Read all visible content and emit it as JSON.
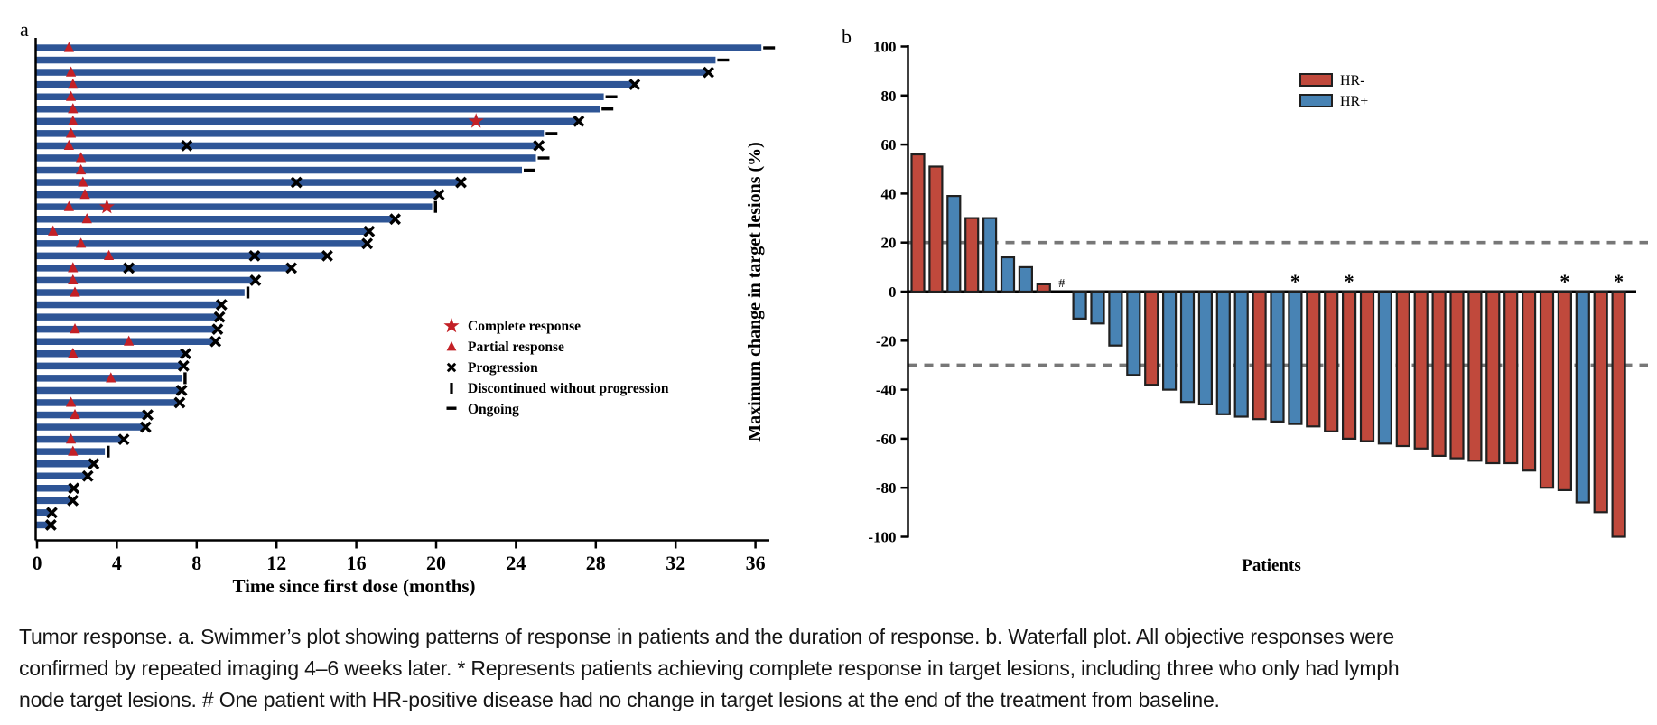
{
  "figure": {
    "panel_a_label": "a",
    "panel_b_label": "b"
  },
  "caption": {
    "lines": [
      "Tumor response. a. Swimmer’s plot showing patterns of response in patients and the duration of response. b. Waterfall plot. All objective responses were",
      "confirmed by repeated imaging 4–6 weeks later. * Represents patients achieving complete response in target lesions, including three who only had lymph",
      "node target lesions. # One patient with HR-positive disease had no change in target lesions at the end of the treatment from baseline."
    ]
  },
  "colors": {
    "swimmer_bar": "#2e5596",
    "response_red": "#c32026",
    "black": "#000000",
    "hr_negative": "#c0493c",
    "hr_positive": "#4883b4",
    "bar_outline": "#202020",
    "dashed_reference": "#777777"
  },
  "chart_data": [
    {
      "type": "bar",
      "subtype": "swimmer",
      "panel": "a",
      "xlabel": "Time since first dose (months)",
      "xlim": [
        0,
        38
      ],
      "xticks": [
        0,
        4,
        8,
        12,
        16,
        20,
        24,
        28,
        32,
        36
      ],
      "legend": [
        {
          "symbol": "star",
          "label": "Complete response"
        },
        {
          "symbol": "triangle",
          "label": "Partial response"
        },
        {
          "symbol": "x",
          "label": "Progression"
        },
        {
          "symbol": "vbar",
          "label": "Discontinued without progression"
        },
        {
          "symbol": "dash",
          "label": "Ongoing"
        }
      ],
      "patients": [
        {
          "length": 36.3,
          "pr": 1.6,
          "cr": null,
          "mid_x": [],
          "end": "ongoing"
        },
        {
          "length": 34.0,
          "pr": null,
          "cr": null,
          "mid_x": [],
          "end": "ongoing"
        },
        {
          "length": 33.6,
          "pr": 1.7,
          "cr": null,
          "mid_x": [],
          "end": "progression"
        },
        {
          "length": 29.9,
          "pr": 1.8,
          "cr": null,
          "mid_x": [],
          "end": "progression"
        },
        {
          "length": 28.4,
          "pr": 1.7,
          "cr": null,
          "mid_x": [],
          "end": "ongoing"
        },
        {
          "length": 28.2,
          "pr": 1.8,
          "cr": null,
          "mid_x": [],
          "end": "ongoing"
        },
        {
          "length": 27.1,
          "pr": 1.8,
          "cr": 22.0,
          "mid_x": [],
          "end": "progression"
        },
        {
          "length": 25.4,
          "pr": 1.7,
          "cr": null,
          "mid_x": [],
          "end": "ongoing"
        },
        {
          "length": 25.1,
          "pr": 1.6,
          "cr": null,
          "mid_x": [
            7.5
          ],
          "end": "progression"
        },
        {
          "length": 25.0,
          "pr": 2.2,
          "cr": null,
          "mid_x": [],
          "end": "ongoing"
        },
        {
          "length": 24.3,
          "pr": 2.2,
          "cr": null,
          "mid_x": [],
          "end": "ongoing"
        },
        {
          "length": 21.2,
          "pr": 2.3,
          "cr": null,
          "mid_x": [
            13.0
          ],
          "end": "progression"
        },
        {
          "length": 20.1,
          "pr": 2.4,
          "cr": null,
          "mid_x": [],
          "end": "progression"
        },
        {
          "length": 19.8,
          "pr": 1.6,
          "cr": 3.5,
          "mid_x": [],
          "end": "discontinued"
        },
        {
          "length": 17.9,
          "pr": 2.5,
          "cr": null,
          "mid_x": [],
          "end": "progression"
        },
        {
          "length": 16.6,
          "pr": 0.8,
          "cr": null,
          "mid_x": [],
          "end": "progression"
        },
        {
          "length": 16.5,
          "pr": 2.2,
          "cr": null,
          "mid_x": [],
          "end": "progression"
        },
        {
          "length": 14.5,
          "pr": 3.6,
          "cr": null,
          "mid_x": [
            10.9
          ],
          "end": "progression"
        },
        {
          "length": 12.7,
          "pr": 1.8,
          "cr": null,
          "mid_x": [
            4.6
          ],
          "end": "progression"
        },
        {
          "length": 10.9,
          "pr": 1.8,
          "cr": null,
          "mid_x": [],
          "end": "progression"
        },
        {
          "length": 10.4,
          "pr": 1.9,
          "cr": null,
          "mid_x": [],
          "end": "discontinued"
        },
        {
          "length": 9.2,
          "pr": null,
          "cr": null,
          "mid_x": [],
          "end": "progression"
        },
        {
          "length": 9.1,
          "pr": null,
          "cr": null,
          "mid_x": [],
          "end": "progression"
        },
        {
          "length": 9.0,
          "pr": 1.9,
          "cr": null,
          "mid_x": [],
          "end": "progression"
        },
        {
          "length": 8.9,
          "pr": 4.6,
          "cr": null,
          "mid_x": [],
          "end": "progression"
        },
        {
          "length": 7.4,
          "pr": 1.8,
          "cr": null,
          "mid_x": [],
          "end": "progression"
        },
        {
          "length": 7.3,
          "pr": null,
          "cr": null,
          "mid_x": [],
          "end": "progression"
        },
        {
          "length": 7.25,
          "pr": 3.7,
          "cr": null,
          "mid_x": [],
          "end": "discontinued"
        },
        {
          "length": 7.2,
          "pr": null,
          "cr": null,
          "mid_x": [],
          "end": "progression"
        },
        {
          "length": 7.1,
          "pr": 1.7,
          "cr": null,
          "mid_x": [],
          "end": "progression"
        },
        {
          "length": 5.5,
          "pr": 1.9,
          "cr": null,
          "mid_x": [],
          "end": "progression"
        },
        {
          "length": 5.4,
          "pr": null,
          "cr": null,
          "mid_x": [],
          "end": "progression"
        },
        {
          "length": 4.3,
          "pr": 1.7,
          "cr": null,
          "mid_x": [],
          "end": "progression"
        },
        {
          "length": 3.4,
          "pr": 1.8,
          "cr": null,
          "mid_x": [],
          "end": "discontinued"
        },
        {
          "length": 2.8,
          "pr": null,
          "cr": null,
          "mid_x": [],
          "end": "progression"
        },
        {
          "length": 2.5,
          "pr": null,
          "cr": null,
          "mid_x": [],
          "end": "progression"
        },
        {
          "length": 1.8,
          "pr": null,
          "cr": null,
          "mid_x": [],
          "end": "progression"
        },
        {
          "length": 1.75,
          "pr": null,
          "cr": null,
          "mid_x": [],
          "end": "progression"
        },
        {
          "length": 0.7,
          "pr": null,
          "cr": null,
          "mid_x": [],
          "end": "progression"
        },
        {
          "length": 0.65,
          "pr": null,
          "cr": null,
          "mid_x": [],
          "end": "progression"
        }
      ]
    },
    {
      "type": "bar",
      "subtype": "waterfall",
      "panel": "b",
      "ylabel": "Maximum change in target lesions (%)",
      "xlabel": "Patients",
      "ylim": [
        -100,
        100
      ],
      "yticks": [
        100,
        80,
        60,
        40,
        20,
        0,
        -20,
        -40,
        -60,
        -80,
        -100
      ],
      "reference_lines": [
        20,
        -30
      ],
      "legend": [
        {
          "label": "HR-",
          "color": "#c0493c"
        },
        {
          "label": "HR+",
          "color": "#4883b4"
        }
      ],
      "bars": [
        {
          "value": 56,
          "group": "HR-",
          "annotation": null
        },
        {
          "value": 51,
          "group": "HR-",
          "annotation": null
        },
        {
          "value": 39,
          "group": "HR+",
          "annotation": null
        },
        {
          "value": 30,
          "group": "HR-",
          "annotation": null
        },
        {
          "value": 30,
          "group": "HR+",
          "annotation": null
        },
        {
          "value": 14,
          "group": "HR+",
          "annotation": null
        },
        {
          "value": 10,
          "group": "HR+",
          "annotation": null
        },
        {
          "value": 3,
          "group": "HR-",
          "annotation": null
        },
        {
          "value": 0,
          "group": "HR+",
          "annotation": "#"
        },
        {
          "value": -11,
          "group": "HR+",
          "annotation": null
        },
        {
          "value": -13,
          "group": "HR+",
          "annotation": null
        },
        {
          "value": -22,
          "group": "HR+",
          "annotation": null
        },
        {
          "value": -34,
          "group": "HR+",
          "annotation": null
        },
        {
          "value": -38,
          "group": "HR-",
          "annotation": null
        },
        {
          "value": -40,
          "group": "HR+",
          "annotation": null
        },
        {
          "value": -45,
          "group": "HR+",
          "annotation": null
        },
        {
          "value": -46,
          "group": "HR+",
          "annotation": null
        },
        {
          "value": -50,
          "group": "HR+",
          "annotation": null
        },
        {
          "value": -51,
          "group": "HR+",
          "annotation": null
        },
        {
          "value": -52,
          "group": "HR-",
          "annotation": null
        },
        {
          "value": -53,
          "group": "HR+",
          "annotation": null
        },
        {
          "value": -54,
          "group": "HR+",
          "annotation": "*"
        },
        {
          "value": -55,
          "group": "HR-",
          "annotation": null
        },
        {
          "value": -57,
          "group": "HR-",
          "annotation": null
        },
        {
          "value": -60,
          "group": "HR-",
          "annotation": "*"
        },
        {
          "value": -61,
          "group": "HR-",
          "annotation": null
        },
        {
          "value": -62,
          "group": "HR+",
          "annotation": null
        },
        {
          "value": -63,
          "group": "HR-",
          "annotation": null
        },
        {
          "value": -64,
          "group": "HR-",
          "annotation": null
        },
        {
          "value": -67,
          "group": "HR-",
          "annotation": null
        },
        {
          "value": -68,
          "group": "HR-",
          "annotation": null
        },
        {
          "value": -69,
          "group": "HR-",
          "annotation": null
        },
        {
          "value": -70,
          "group": "HR-",
          "annotation": null
        },
        {
          "value": -70,
          "group": "HR-",
          "annotation": null
        },
        {
          "value": -73,
          "group": "HR-",
          "annotation": null
        },
        {
          "value": -80,
          "group": "HR-",
          "annotation": null
        },
        {
          "value": -81,
          "group": "HR-",
          "annotation": "*"
        },
        {
          "value": -86,
          "group": "HR+",
          "annotation": null
        },
        {
          "value": -90,
          "group": "HR-",
          "annotation": null
        },
        {
          "value": -100,
          "group": "HR-",
          "annotation": "*"
        }
      ]
    }
  ]
}
